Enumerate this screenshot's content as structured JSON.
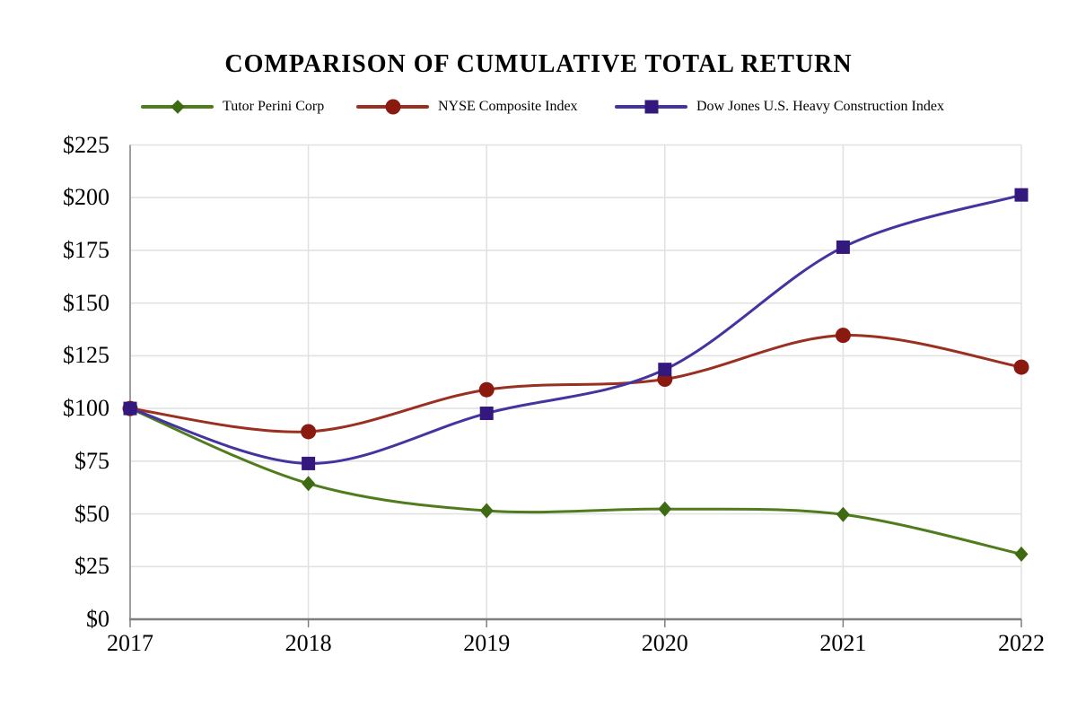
{
  "title": "COMPARISON OF CUMULATIVE TOTAL RETURN",
  "chart_data": {
    "type": "line",
    "title": "COMPARISON OF CUMULATIVE TOTAL RETURN",
    "x": [
      "2017",
      "2018",
      "2019",
      "2020",
      "2021",
      "2022"
    ],
    "series": [
      {
        "name": "Tutor Perini Corp",
        "marker": "diamond",
        "line_color": "#507c1e",
        "marker_color": "#3e6a12",
        "values": [
          100,
          64.4,
          51.5,
          52.3,
          49.7,
          30.9
        ]
      },
      {
        "name": "NYSE Composite Index",
        "marker": "circle",
        "line_color": "#9a3020",
        "marker_color": "#8a1a10",
        "values": [
          100,
          89.0,
          108.9,
          113.9,
          134.7,
          119.6
        ]
      },
      {
        "name": "Dow Jones U.S. Heavy Construction Index",
        "marker": "square",
        "line_color": "#4434a0",
        "marker_color": "#33187e",
        "values": [
          100,
          73.9,
          97.7,
          118.5,
          176.5,
          201.3
        ]
      }
    ],
    "xlabel": "",
    "ylabel": "",
    "ylim": [
      0,
      225
    ],
    "ytick_step": 25,
    "y_tick_labels": [
      "$0",
      "$25",
      "$50",
      "$75",
      "$100",
      "$125",
      "$150",
      "$175",
      "$200",
      "$225"
    ],
    "grid": true,
    "smooth": true,
    "legend_position": "top",
    "colors": {
      "gridline": "#e2e2e2",
      "left_axis": "#9e9e9e",
      "bottom_axis": "#7f7f7f",
      "text": "#000000"
    }
  }
}
